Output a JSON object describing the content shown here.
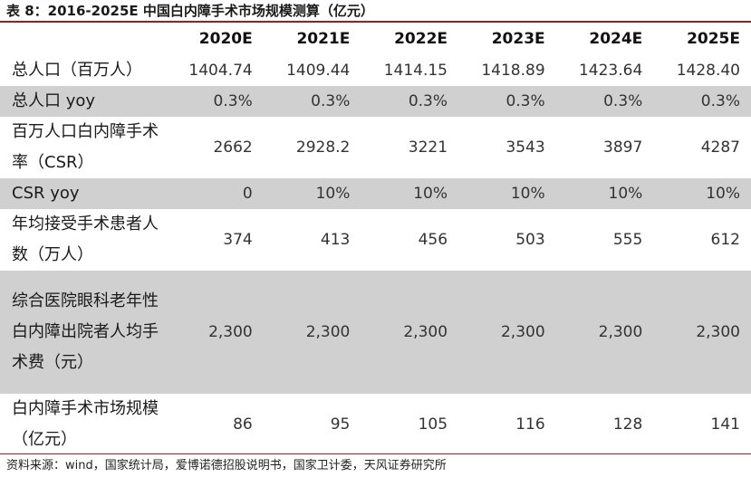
{
  "title": "表 8：2016-2025E 中国白内障手术市场规模测算（亿元）",
  "source": "资料来源：wind，国家统计局，爱博诺德招股说明书，国家卫计委，天风证券研究所",
  "table": {
    "columns": [
      "2020E",
      "2021E",
      "2022E",
      "2023E",
      "2024E",
      "2025E"
    ],
    "rows": [
      {
        "label": "总人口（百万人）",
        "values": [
          "1404.74",
          "1409.44",
          "1414.15",
          "1418.89",
          "1423.64",
          "1428.40"
        ]
      },
      {
        "label": "总人口 yoy",
        "values": [
          "0.3%",
          "0.3%",
          "0.3%",
          "0.3%",
          "0.3%",
          "0.3%"
        ]
      },
      {
        "label": "百万人口白内障手术率（CSR）",
        "values": [
          "2662",
          "2928.2",
          "3221",
          "3543",
          "3897",
          "4287"
        ]
      },
      {
        "label": "CSR yoy",
        "values": [
          "0",
          "10%",
          "10%",
          "10%",
          "10%",
          "10%"
        ]
      },
      {
        "label": "年均接受手术患者人数（万人）",
        "values": [
          "374",
          "413",
          "456",
          "503",
          "555",
          "612"
        ]
      },
      {
        "label": "综合医院眼科老年性白内障出院者人均手术费（元）",
        "values": [
          "2,300",
          "2,300",
          "2,300",
          "2,300",
          "2,300",
          "2,300"
        ]
      },
      {
        "label": "白内障手术市场规模（亿元）",
        "values": [
          "86",
          "95",
          "105",
          "116",
          "128",
          "141"
        ]
      }
    ]
  }
}
